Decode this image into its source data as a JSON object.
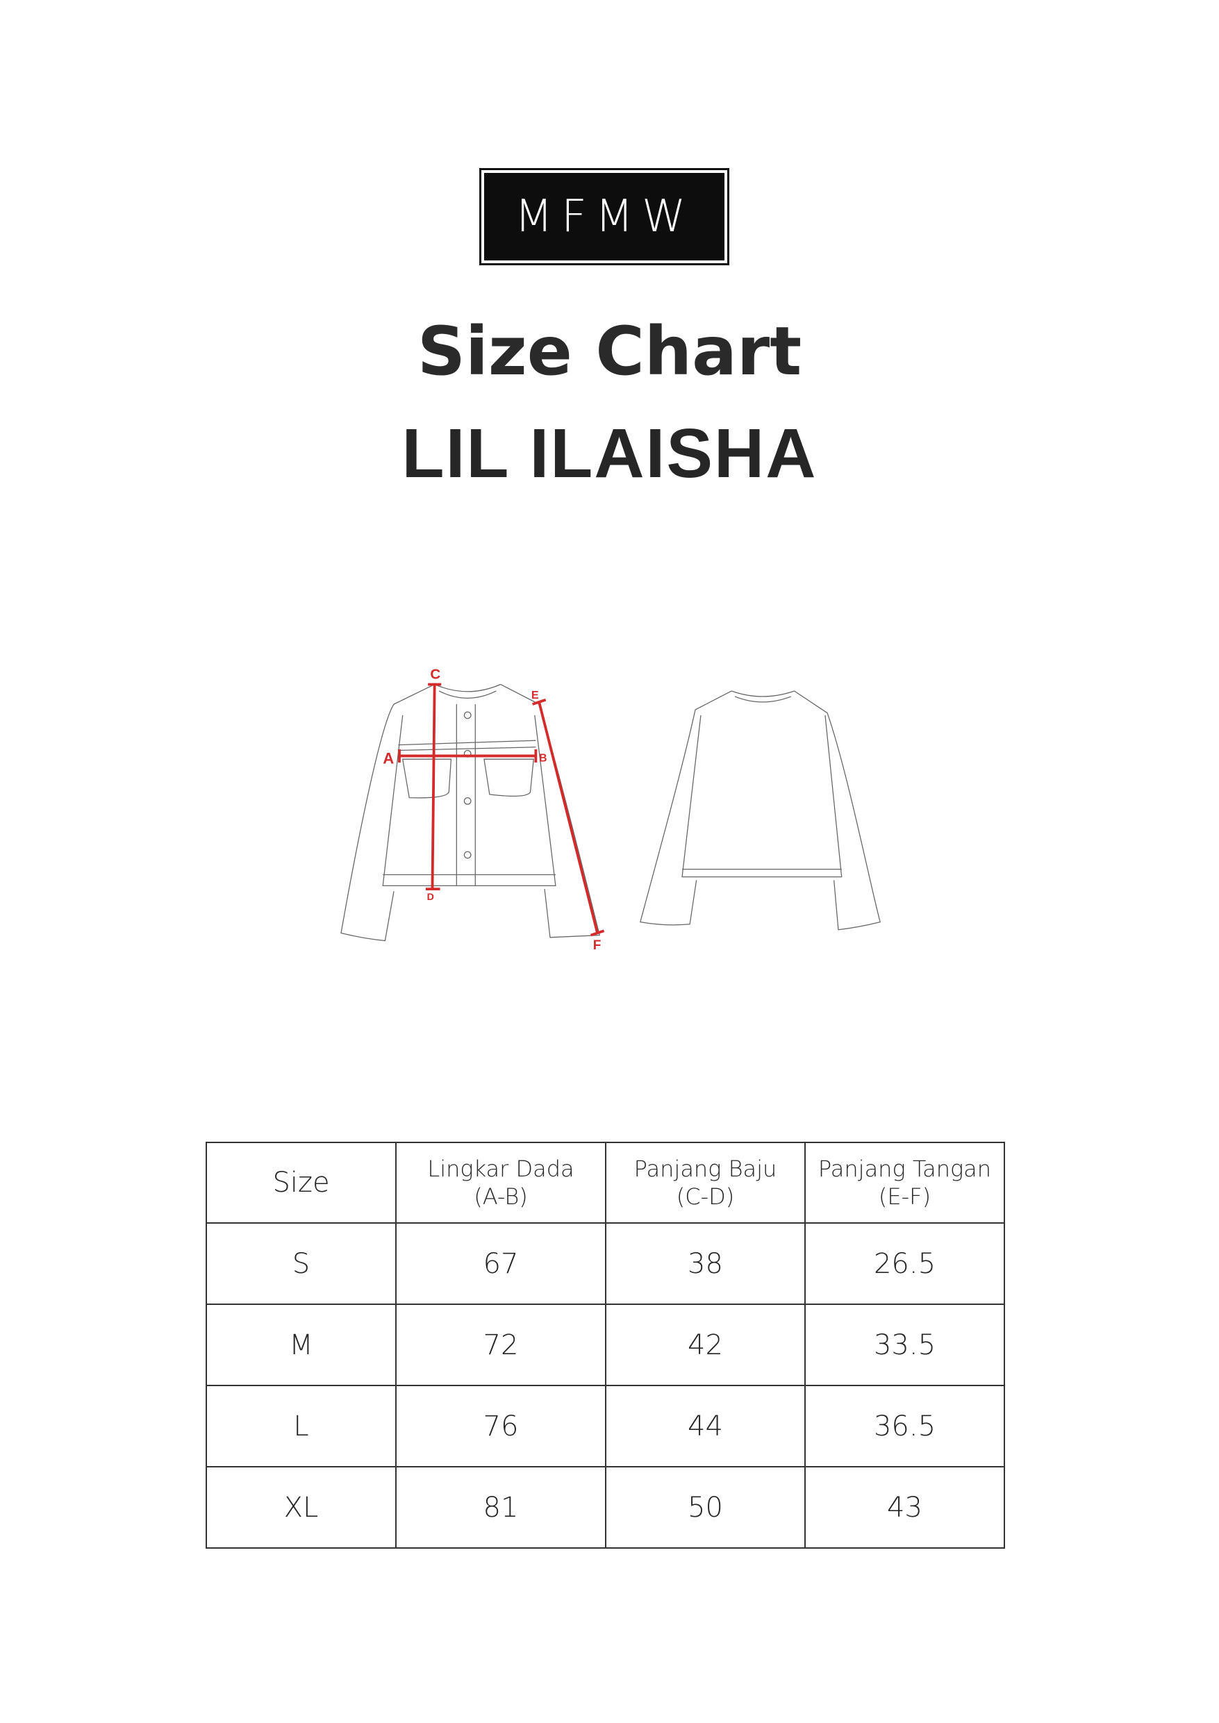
{
  "brand": {
    "logo_text": "MFMW"
  },
  "title": "Size Chart",
  "product_name": "LIL ILAISHA",
  "diagram": {
    "labels": [
      "A",
      "B",
      "C",
      "D",
      "E",
      "F"
    ],
    "measure_color": "#d42a2a",
    "outline_color": "#555555"
  },
  "table": {
    "headers": [
      {
        "line1": "Size",
        "line2": ""
      },
      {
        "line1": "Lingkar Dada",
        "line2": "(A-B)"
      },
      {
        "line1": "Panjang Baju",
        "line2": "(C-D)"
      },
      {
        "line1": "Panjang Tangan",
        "line2": "(E-F)"
      }
    ],
    "rows": [
      [
        "S",
        "67",
        "38",
        "26.5"
      ],
      [
        "M",
        "72",
        "42",
        "33.5"
      ],
      [
        "L",
        "76",
        "44",
        "36.5"
      ],
      [
        "XL",
        "81",
        "50",
        "43"
      ]
    ]
  }
}
